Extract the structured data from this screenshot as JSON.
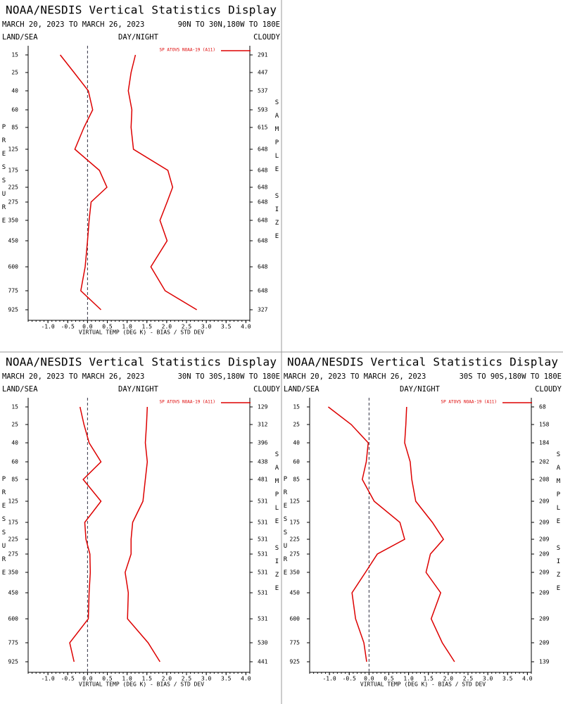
{
  "chart_data": [
    {
      "type": "line",
      "title": "NOAA/NESDIS Vertical Statistics Display",
      "subtitle": "MARCH 20, 2023 TO MARCH 26, 2023",
      "region": "90N TO 30N,180W TO 180E",
      "left_label": "LAND/SEA",
      "center_label": "DAY/NIGHT",
      "right_label": "CLOUDY",
      "ylabel": "PRESSURE",
      "y2label": "SAMPLE SIZE",
      "xlabel": "VIRTUAL TEMP (DEG K) - BIAS / STD DEV",
      "legend": "SP ATOVS NOAA-19 (A11)",
      "categories": [
        15,
        25,
        40,
        60,
        85,
        125,
        175,
        225,
        275,
        350,
        450,
        600,
        775,
        925
      ],
      "sample_size": [
        291,
        447,
        537,
        593,
        615,
        648,
        648,
        648,
        648,
        648,
        648,
        648,
        648,
        327
      ],
      "series": [
        {
          "color": "#dd0000",
          "values": [
            -0.69,
            -0.34,
            0.02,
            0.13,
            -0.09,
            -0.32,
            0.3,
            0.49,
            0.09,
            0.04,
            0.0,
            -0.06,
            -0.17,
            0.34
          ]
        },
        {
          "color": "#dd0000",
          "values": [
            1.21,
            1.1,
            1.03,
            1.12,
            1.1,
            1.16,
            2.03,
            2.15,
            2.01,
            1.83,
            2.01,
            1.6,
            1.96,
            2.76
          ]
        }
      ],
      "xlim": [
        -1.5,
        4.1
      ],
      "xticks": [
        {
          "value": -1,
          "label": "-1.0"
        },
        -0.5,
        {
          "value": 0,
          "label": "0.0"
        },
        0.5,
        {
          "value": 1,
          "label": "1.0"
        },
        1.5,
        {
          "value": 2,
          "label": "2.0"
        },
        2.5,
        {
          "value": 3,
          "label": "3.0"
        },
        3.5,
        {
          "value": 4,
          "label": "4.0"
        }
      ]
    },
    {
      "type": "line",
      "title": "NOAA/NESDIS Vertical Statistics Display",
      "subtitle": "MARCH 20, 2023 TO MARCH 26, 2023",
      "region": "30N TO 30S,180W TO 180E",
      "left_label": "LAND/SEA",
      "center_label": "DAY/NIGHT",
      "right_label": "CLOUDY",
      "ylabel": "PRESSURE",
      "y2label": "SAMPLE SIZE",
      "xlabel": "VIRTUAL TEMP (DEG K) - BIAS / STD DEV",
      "legend": "SP ATOVS NOAA-19 (A11)",
      "categories": [
        15,
        25,
        40,
        60,
        85,
        125,
        175,
        225,
        275,
        350,
        450,
        600,
        775,
        925
      ],
      "sample_size": [
        129,
        312,
        396,
        438,
        481,
        531,
        531,
        531,
        531,
        531,
        531,
        531,
        530,
        441
      ],
      "series": [
        {
          "color": "#dd0000",
          "values": [
            -0.19,
            -0.09,
            0.04,
            0.34,
            -0.11,
            0.34,
            -0.07,
            -0.04,
            0.06,
            0.07,
            0.04,
            0.02,
            -0.45,
            -0.34
          ]
        },
        {
          "color": "#dd0000",
          "values": [
            1.51,
            1.49,
            1.46,
            1.51,
            1.46,
            1.4,
            1.14,
            1.1,
            1.1,
            0.95,
            1.03,
            1.01,
            1.53,
            1.83
          ]
        }
      ],
      "xlim": [
        -1.5,
        4.1
      ],
      "xticks": [
        {
          "value": -1,
          "label": "-1.0"
        },
        -0.5,
        {
          "value": 0,
          "label": "0.0"
        },
        0.5,
        {
          "value": 1,
          "label": "1.0"
        },
        1.5,
        {
          "value": 2,
          "label": "2.0"
        },
        2.5,
        {
          "value": 3,
          "label": "3.0"
        },
        3.5,
        {
          "value": 4,
          "label": "4.0"
        }
      ]
    },
    {
      "type": "line",
      "title": "NOAA/NESDIS Vertical Statistics Display",
      "subtitle": "MARCH 20, 2023 TO MARCH 26, 2023",
      "region": "30S TO 90S,180W TO 180E",
      "left_label": "LAND/SEA",
      "center_label": "DAY/NIGHT",
      "right_label": "CLOUDY",
      "ylabel": "PRESSURE",
      "y2label": "SAMPLE SIZE",
      "xlabel": "VIRTUAL TEMP (DEG K) - BIAS / STD DEV",
      "legend": "SP ATOVS NOAA-19 (A11)",
      "categories": [
        15,
        25,
        40,
        60,
        85,
        125,
        175,
        225,
        275,
        350,
        450,
        600,
        775,
        925
      ],
      "sample_size": [
        68,
        158,
        184,
        202,
        208,
        209,
        209,
        209,
        209,
        209,
        209,
        209,
        209,
        139
      ],
      "series": [
        {
          "color": "#dd0000",
          "values": [
            -1.03,
            -0.45,
            -0.02,
            -0.07,
            -0.17,
            0.13,
            0.78,
            0.9,
            0.21,
            -0.09,
            -0.43,
            -0.34,
            -0.13,
            -0.06
          ]
        },
        {
          "color": "#dd0000",
          "values": [
            0.95,
            0.93,
            0.9,
            1.04,
            1.08,
            1.18,
            1.6,
            1.88,
            1.55,
            1.44,
            1.81,
            1.57,
            1.85,
            2.16
          ]
        }
      ],
      "xlim": [
        -1.5,
        4.1
      ],
      "xticks": [
        {
          "value": -1,
          "label": "-1.0"
        },
        -0.5,
        {
          "value": 0,
          "label": "0.0"
        },
        0.5,
        {
          "value": 1,
          "label": "1.0"
        },
        1.5,
        {
          "value": 2,
          "label": "2.0"
        },
        2.5,
        {
          "value": 3,
          "label": "3.0"
        },
        3.5,
        {
          "value": 4,
          "label": "4.0"
        }
      ]
    }
  ]
}
